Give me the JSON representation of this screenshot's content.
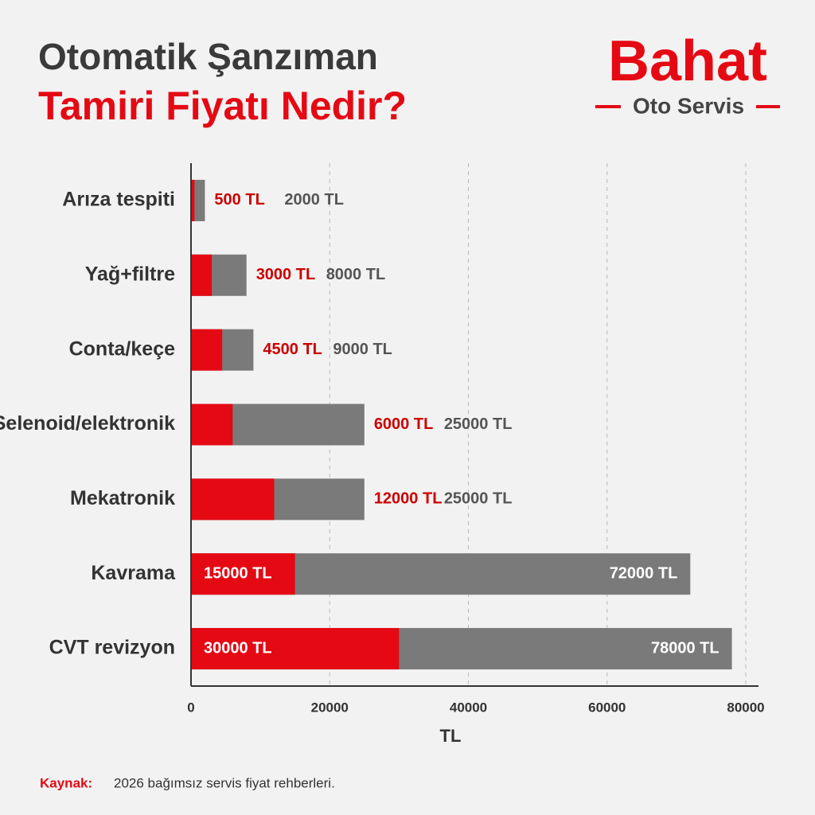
{
  "chart_data": {
    "type": "bar",
    "orientation": "horizontal",
    "title": [
      "Otomatik Şanzıman",
      "Tamiri Fiyatı Nedir?"
    ],
    "brand": {
      "name": "Bahat",
      "tagline": "Oto Servis"
    },
    "categories": [
      "Arıza tespiti",
      "Yağ+filtre",
      "Conta/keçe",
      "Selenoid/elektronik",
      "Mekatronik",
      "Kavrama",
      "CVT revizyon"
    ],
    "series": [
      {
        "color": "#e50914",
        "values": [
          500,
          3000,
          4500,
          6000,
          12000,
          15000,
          30000
        ],
        "value_labels": [
          "500 TL",
          "3000 TL",
          "4500 TL",
          "6000 TL",
          "12000 TL",
          "15000 TL",
          "30000 TL"
        ]
      },
      {
        "color": "#7a7a7a",
        "values": [
          2000,
          8000,
          9000,
          25000,
          25000,
          72000,
          78000
        ],
        "value_labels": [
          "2000 TL",
          "8000 TL",
          "9000 TL",
          "25000 TL",
          "25000 TL",
          "72000 TL",
          "78000 TL"
        ]
      }
    ],
    "xlabel": "TL",
    "xlim": [
      0,
      80000
    ],
    "xticks": [
      0,
      20000,
      40000,
      60000,
      80000
    ],
    "grid": true,
    "source": {
      "label": "Kaynak:",
      "text": "2026 bağımsız servis fiyat rehberleri."
    }
  }
}
